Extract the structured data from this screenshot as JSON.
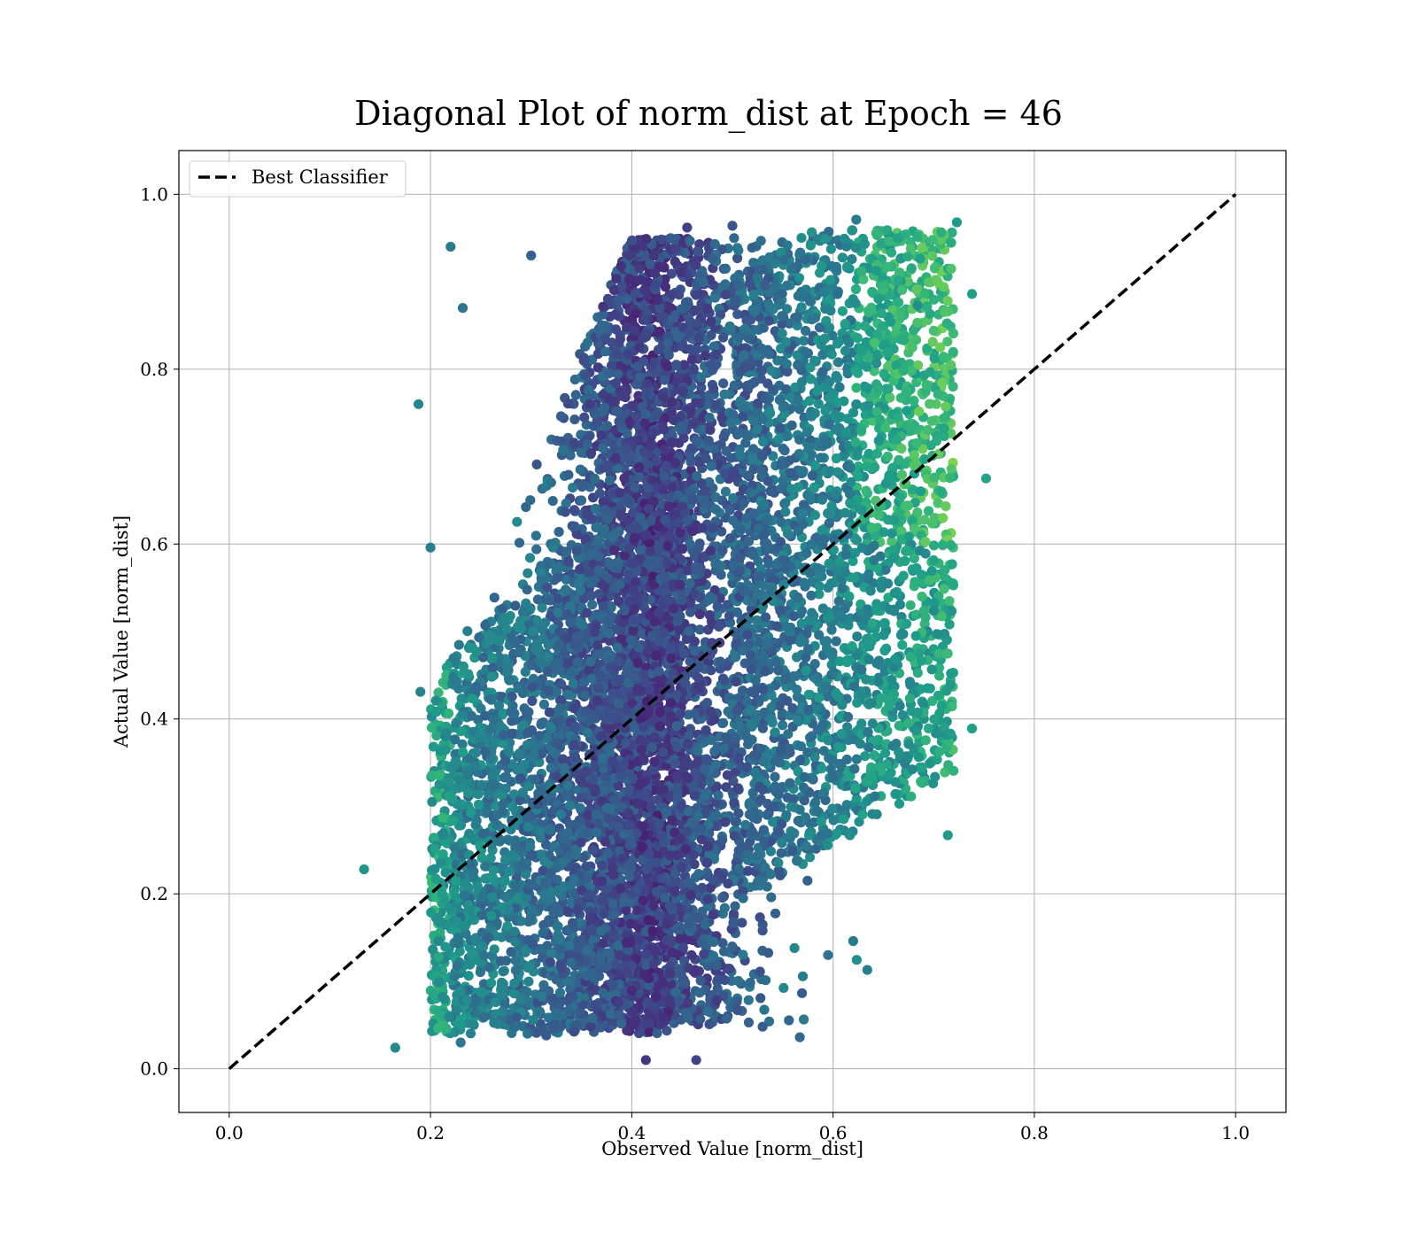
{
  "chart_data": {
    "type": "scatter",
    "title": "Diagonal Plot of norm_dist at Epoch = 46",
    "xlabel": "Observed Value [norm_dist]",
    "ylabel": "Actual Value [norm_dist]",
    "xlim": [
      -0.05,
      1.05
    ],
    "ylim": [
      -0.05,
      1.05
    ],
    "x_ticks": [
      "0.0",
      "0.2",
      "0.4",
      "0.6",
      "0.8",
      "1.0"
    ],
    "y_ticks": [
      "0.0",
      "0.2",
      "0.4",
      "0.6",
      "0.8",
      "1.0"
    ],
    "grid": true,
    "legend": {
      "placement": "top-left",
      "entries": [
        "Best Classifier"
      ]
    },
    "reference_line": {
      "name": "Best Classifier",
      "style": "dashed",
      "color": "#000000",
      "x": [
        0.0,
        1.0
      ],
      "y": [
        0.0,
        1.0
      ]
    },
    "colormap": "viridis",
    "x_range_of_points": [
      0.13,
      0.75
    ],
    "y_range_of_points": [
      0.01,
      0.97
    ],
    "points": [
      [
        0.22,
        0.94
      ],
      [
        0.3,
        0.93
      ],
      [
        0.188,
        0.76
      ],
      [
        0.232,
        0.87
      ],
      [
        0.752,
        0.675
      ],
      [
        0.738,
        0.886
      ],
      [
        0.738,
        0.389
      ],
      [
        0.634,
        0.113
      ],
      [
        0.623,
        0.971
      ],
      [
        0.567,
        0.036
      ],
      [
        0.414,
        0.01
      ],
      [
        0.464,
        0.01
      ],
      [
        0.165,
        0.024
      ],
      [
        0.134,
        0.228
      ],
      [
        0.723,
        0.968
      ],
      [
        0.714,
        0.267
      ],
      [
        0.684,
        0.873
      ],
      [
        0.532,
        0.612
      ],
      [
        0.592,
        0.719
      ],
      [
        0.2,
        0.596
      ],
      [
        0.19,
        0.431
      ],
      [
        0.398,
        0.93
      ],
      [
        0.455,
        0.962
      ],
      [
        0.5,
        0.964
      ],
      [
        0.53,
        0.048
      ],
      [
        0.505,
        0.067
      ],
      [
        0.23,
        0.03
      ],
      [
        0.315,
        0.038
      ],
      [
        0.595,
        0.13
      ],
      [
        0.62,
        0.146
      ]
    ]
  }
}
